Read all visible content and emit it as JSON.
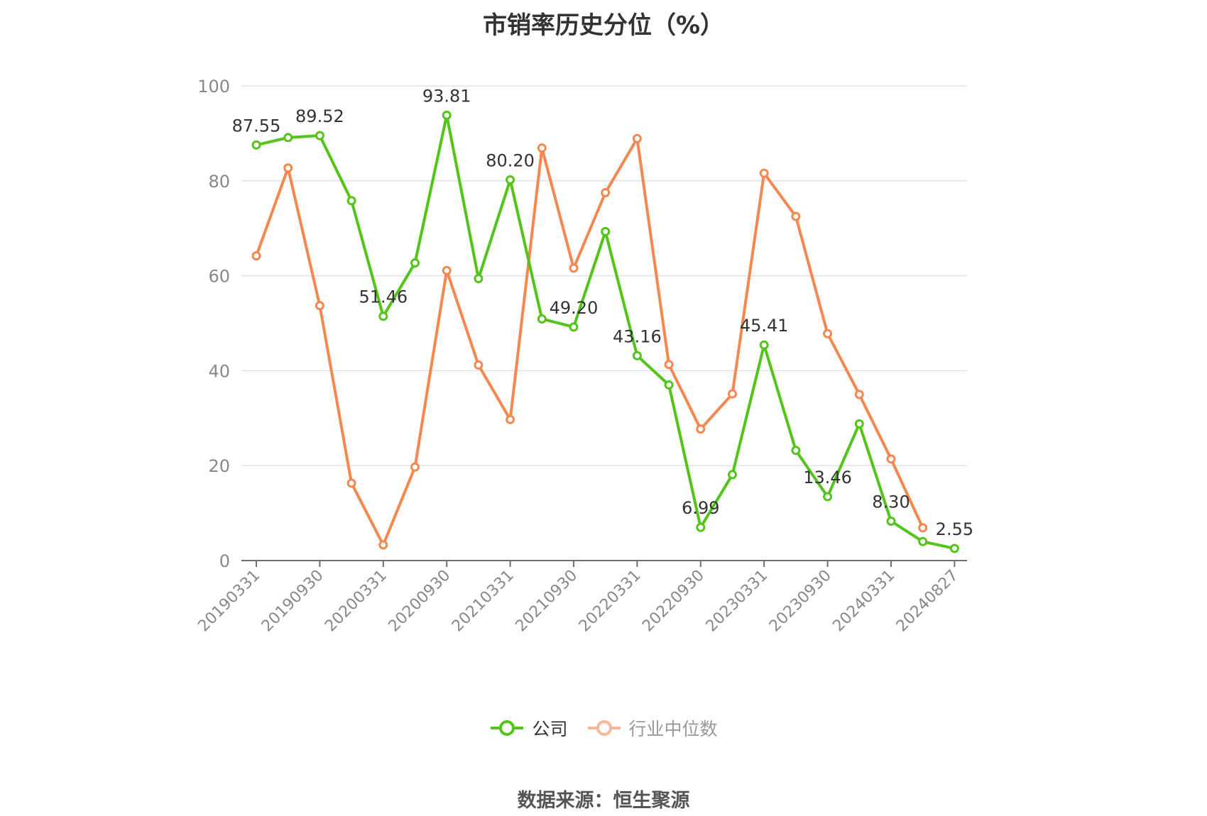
{
  "title": "市销率历史分位（%）",
  "source": "数据来源：恒生聚源",
  "colors": {
    "company": "#52c41a",
    "industry": "#f5874f",
    "industry_legend": "#f8b79a",
    "grid": "#e0e3ef",
    "axis": "#6e7079",
    "tick_text": "#888888"
  },
  "chart_data": {
    "type": "line",
    "title": "市销率历史分位（%）",
    "ylim": [
      0,
      100
    ],
    "yticks": [
      0,
      20,
      40,
      60,
      80,
      100
    ],
    "x_tick_labels": [
      "20190331",
      "20190930",
      "20200331",
      "20200930",
      "20210331",
      "20210930",
      "20220331",
      "20220930",
      "20230331",
      "20230930",
      "20240331",
      "20240827"
    ],
    "legend_position": "bottom-center",
    "grid": true,
    "series": [
      {
        "name": "公司",
        "color": "#52c41a",
        "values": [
          87.55,
          89.1,
          89.52,
          75.8,
          51.46,
          62.7,
          93.81,
          59.4,
          80.2,
          50.9,
          49.2,
          69.3,
          43.16,
          37.0,
          6.99,
          18.1,
          45.41,
          23.2,
          13.46,
          28.8,
          8.3,
          4.0,
          2.55
        ],
        "labels": {
          "0": "87.55",
          "2": "89.52",
          "4": "51.46",
          "6": "93.81",
          "8": "80.20",
          "10": "49.20",
          "12": "43.16",
          "14": "6.99",
          "16": "45.41",
          "18": "13.46",
          "20": "8.30",
          "22": "2.55"
        }
      },
      {
        "name": "行业中位数",
        "color": "#f5874f",
        "values": [
          64.2,
          82.7,
          53.7,
          16.3,
          3.3,
          19.7,
          61.1,
          41.2,
          29.7,
          86.9,
          61.6,
          77.5,
          88.9,
          41.3,
          27.7,
          35.1,
          81.6,
          72.5,
          47.8,
          35.0,
          21.4,
          6.9
        ]
      }
    ]
  },
  "legend": {
    "company": "公司",
    "industry": "行业中位数"
  }
}
